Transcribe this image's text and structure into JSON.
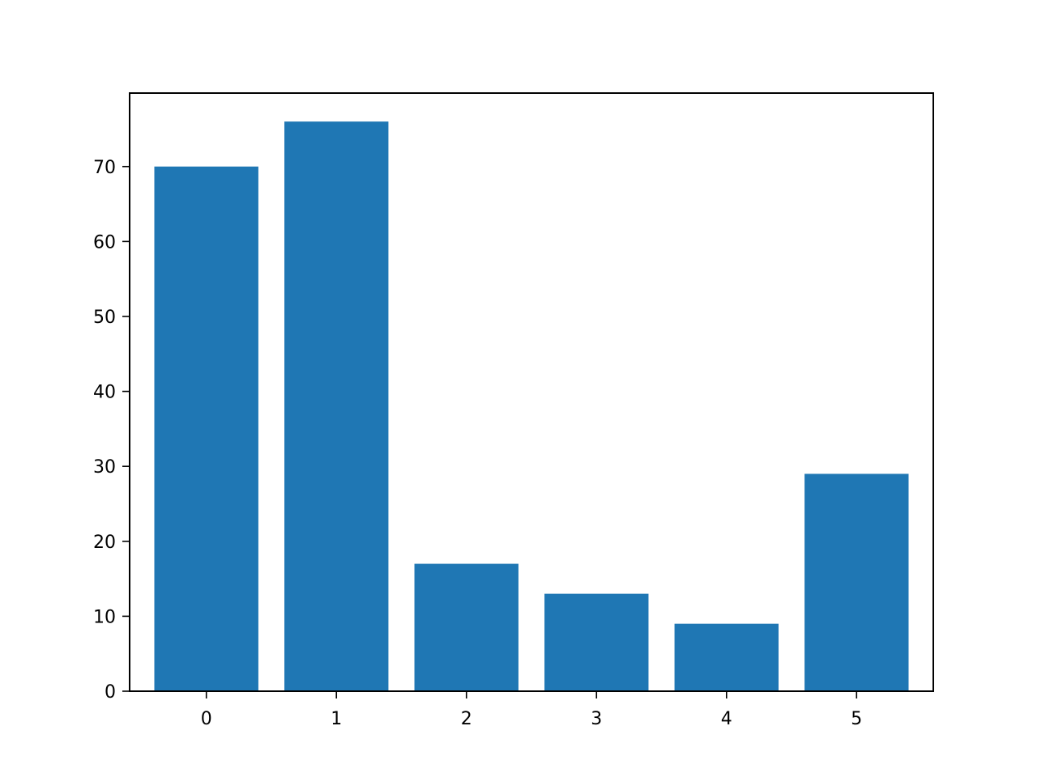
{
  "chart_data": {
    "type": "bar",
    "title": "",
    "xlabel": "",
    "ylabel": "",
    "categories": [
      "0",
      "1",
      "2",
      "3",
      "4",
      "5"
    ],
    "values": [
      70,
      76,
      17,
      13,
      9,
      29
    ],
    "ylim": [
      0,
      79.8
    ],
    "xlim": [
      -0.59,
      5.59
    ],
    "yticks": [
      0,
      10,
      20,
      30,
      40,
      50,
      60,
      70
    ],
    "ytick_labels": [
      "0",
      "10",
      "20",
      "30",
      "40",
      "50",
      "60",
      "70"
    ],
    "bar_width": 0.8,
    "grid": false,
    "legend": "none",
    "bar_color": "#1f77b4"
  }
}
